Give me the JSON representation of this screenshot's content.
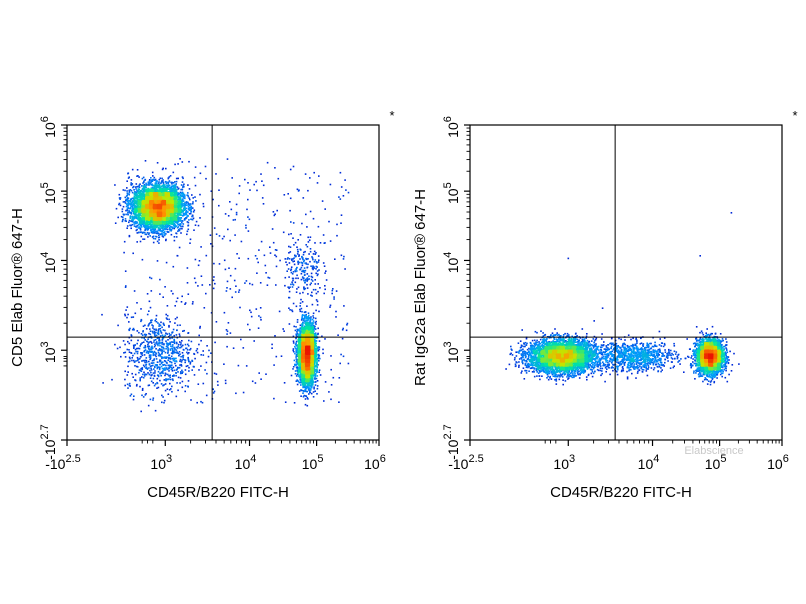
{
  "chart_data": [
    {
      "type": "scatter",
      "title": "",
      "corner_mark": "*",
      "xlabel": "CD45R/B220 FITC-H",
      "ylabel": "CD5 Elab Fluor® 647-H",
      "x_ticks": [
        {
          "base": "-10",
          "exp": "2.5"
        },
        {
          "base": "10",
          "exp": "3"
        },
        {
          "base": "10",
          "exp": "4"
        },
        {
          "base": "10",
          "exp": "5"
        },
        {
          "base": "10",
          "exp": "6"
        }
      ],
      "y_ticks": [
        {
          "base": "-10",
          "exp": "2.7"
        },
        {
          "base": "10",
          "exp": "3"
        },
        {
          "base": "10",
          "exp": "4"
        },
        {
          "base": "10",
          "exp": "5"
        },
        {
          "base": "10",
          "exp": "6"
        }
      ],
      "x_scale": "biexponential",
      "y_scale": "biexponential",
      "gate": {
        "x": 3600,
        "y": 1400
      },
      "clusters": [
        {
          "x": 350,
          "y": 60000,
          "count": 5200,
          "spread_x": 0.34,
          "spread_y": 0.28
        },
        {
          "x": 70000,
          "y": 600,
          "count": 3400,
          "spread_x": 0.12,
          "spread_y": 0.4
        },
        {
          "x": 400,
          "y": 600,
          "count": 700,
          "spread_x": 0.45,
          "spread_y": 0.5
        },
        {
          "x": 4000,
          "y": 10000,
          "count": 500,
          "spread_x": 1.0,
          "spread_y": 1.0
        },
        {
          "x": 60000,
          "y": 8000,
          "count": 200,
          "spread_x": 0.25,
          "spread_y": 0.45
        }
      ]
    },
    {
      "type": "scatter",
      "title": "",
      "corner_mark": "*",
      "xlabel": "CD45R/B220 FITC-H",
      "ylabel": "Rat IgG2a Elab Fluor® 647-H",
      "x_ticks": [
        {
          "base": "-10",
          "exp": "2.5"
        },
        {
          "base": "10",
          "exp": "3"
        },
        {
          "base": "10",
          "exp": "4"
        },
        {
          "base": "10",
          "exp": "5"
        },
        {
          "base": "10",
          "exp": "6"
        }
      ],
      "y_ticks": [
        {
          "base": "-10",
          "exp": "2.7"
        },
        {
          "base": "10",
          "exp": "3"
        },
        {
          "base": "10",
          "exp": "4"
        },
        {
          "base": "10",
          "exp": "5"
        },
        {
          "base": "10",
          "exp": "6"
        }
      ],
      "x_scale": "biexponential",
      "y_scale": "biexponential",
      "gate": {
        "x": 3600,
        "y": 1400
      },
      "clusters": [
        {
          "x": 400,
          "y": 450,
          "count": 4200,
          "spread_x": 0.45,
          "spread_y": 0.22
        },
        {
          "x": 70000,
          "y": 450,
          "count": 3000,
          "spread_x": 0.18,
          "spread_y": 0.22
        },
        {
          "x": 6000,
          "y": 450,
          "count": 900,
          "spread_x": 0.55,
          "spread_y": 0.2
        }
      ],
      "outliers": [
        {
          "x": 2500,
          "y": 3000
        },
        {
          "x": 50000,
          "y": 12000
        },
        {
          "x": 150000,
          "y": 50000
        },
        {
          "x": 900,
          "y": 11000
        }
      ]
    }
  ],
  "watermark": "Elabscience"
}
